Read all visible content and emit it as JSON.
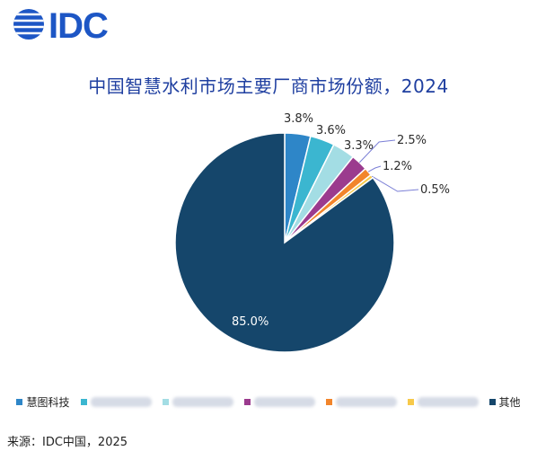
{
  "brand": {
    "logo_text": "IDC",
    "colors": {
      "globe": "#1d56c5",
      "text": "#1d56c5"
    }
  },
  "chart_data": {
    "type": "pie",
    "title": "中国智慧水利市场主要厂商市场份额，2024",
    "slices": [
      {
        "label": "慧图科技",
        "value": 3.8,
        "color": "#2e86c8",
        "display": "3.8%"
      },
      {
        "label": "",
        "value": 3.6,
        "color": "#3bb6d0",
        "display": "3.6%",
        "redacted": true
      },
      {
        "label": "",
        "value": 3.3,
        "color": "#a3dde4",
        "display": "3.3%",
        "redacted": true
      },
      {
        "label": "",
        "value": 2.5,
        "color": "#9b3b8e",
        "display": "2.5%",
        "redacted": true
      },
      {
        "label": "",
        "value": 1.2,
        "color": "#f2852b",
        "display": "1.2%",
        "redacted": true
      },
      {
        "label": "",
        "value": 0.5,
        "color": "#f7c94a",
        "display": "0.5%",
        "redacted": true
      },
      {
        "label": "其他",
        "value": 85.0,
        "color": "#15466b",
        "display": "85.0%"
      }
    ],
    "legend_position": "bottom",
    "source": "来源：IDC中国，2025"
  }
}
